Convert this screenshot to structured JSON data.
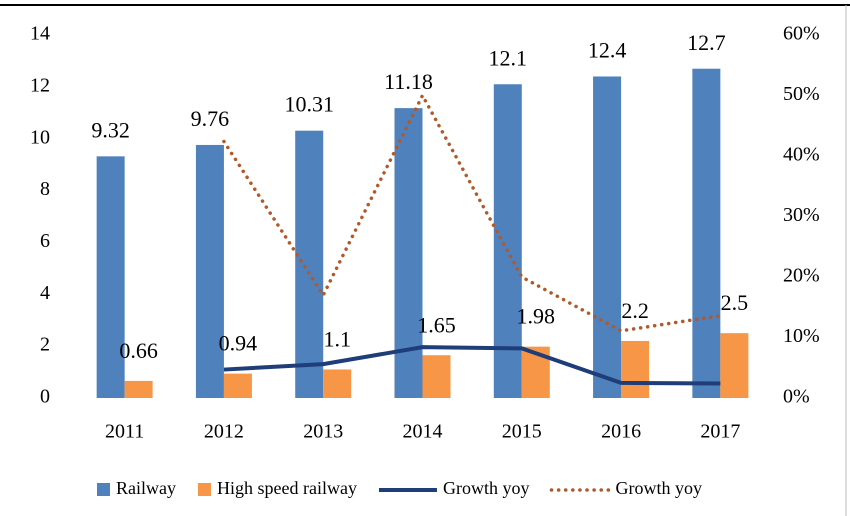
{
  "chart_data": {
    "type": "bar",
    "categories": [
      "2011",
      "2012",
      "2013",
      "2014",
      "2015",
      "2016",
      "2017"
    ],
    "series": [
      {
        "name": "Railway",
        "color": "#4f81bd",
        "values": [
          9.32,
          9.76,
          10.31,
          11.18,
          12.1,
          12.4,
          12.7
        ]
      },
      {
        "name": "High speed railway",
        "color": "#f79646",
        "values": [
          0.66,
          0.94,
          1.1,
          1.65,
          1.98,
          2.2,
          2.5
        ]
      },
      {
        "name": "Growth yoy",
        "type": "line",
        "axis": "y2",
        "color": "#1f3d78",
        "dash": "solid",
        "values": [
          null,
          4.7,
          5.6,
          8.4,
          8.2,
          2.5,
          2.4
        ]
      },
      {
        "name": "Growth yoy",
        "type": "line",
        "axis": "y2",
        "color": "#b0592a",
        "dash": "dotted",
        "values": [
          null,
          42.4,
          17.0,
          50.0,
          20.0,
          11.1,
          13.6
        ]
      }
    ],
    "ylim": [
      0,
      14
    ],
    "yticks": [
      0,
      2,
      4,
      6,
      8,
      10,
      12,
      14
    ],
    "y2lim": [
      0,
      60
    ],
    "y2ticks": [
      {
        "value": 0,
        "label": "0%"
      },
      {
        "value": 10,
        "label": "10%"
      },
      {
        "value": 20,
        "label": "20%"
      },
      {
        "value": 30,
        "label": "30%"
      },
      {
        "value": 40,
        "label": "40%"
      },
      {
        "value": 50,
        "label": "50%"
      },
      {
        "value": 60,
        "label": "60%"
      }
    ],
    "grid": false,
    "legend": "bottom"
  }
}
